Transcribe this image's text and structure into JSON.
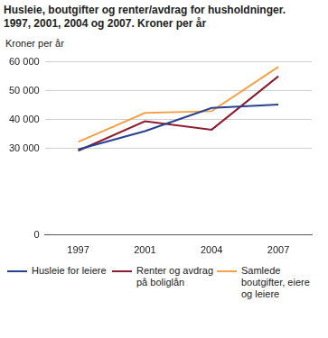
{
  "chart_data": {
    "type": "line",
    "title": "Husleie, boutgifter og renter/avdrag for husholdninger. 1997, 2001, 2004 og 2007. Kroner per år",
    "y_label": "Kroner per år",
    "categories": [
      "1997",
      "2001",
      "2004",
      "2007"
    ],
    "series": [
      {
        "name": "Husleie for leiere",
        "color": "#27408f",
        "values": [
          29700,
          36000,
          44000,
          45200
        ]
      },
      {
        "name": "Renter og avdrag på boliglån",
        "color": "#8c1d2e",
        "values": [
          29200,
          39400,
          36500,
          55000
        ]
      },
      {
        "name": "Samlede boutgifter, eiere og leiere",
        "color": "#f4a14c",
        "values": [
          32300,
          42300,
          42900,
          58300
        ]
      }
    ],
    "ylim": [
      0,
      60000
    ],
    "yticks": [
      0,
      {
        "value": 30000,
        "label": "30 000"
      },
      {
        "value": 40000,
        "label": "40 000"
      },
      {
        "value": 50000,
        "label": "50 000"
      },
      {
        "value": 60000,
        "label": "60 000"
      }
    ],
    "grid": true,
    "legend": "bottom",
    "line_style": "solid",
    "marker": "none"
  }
}
